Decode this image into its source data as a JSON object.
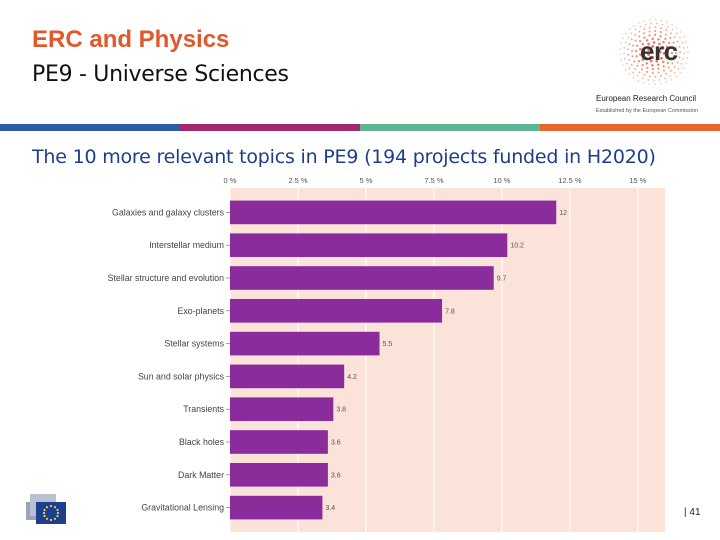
{
  "slide": {
    "title": "ERC and Physics",
    "subtitle": "PE9 - Universe Sciences",
    "page_number": "| 41"
  },
  "logo": {
    "word": "erc",
    "name": "European Research Council",
    "sub": "Established by the European Commission"
  },
  "colors": {
    "title": "#e2572b",
    "heading": "#1f3e8a",
    "bar": "#8a2c9b",
    "plot_bg": "#fbe3da",
    "stripe_blue": "#2e5da8",
    "stripe_purple": "#a12a6c",
    "stripe_teal": "#5fb58f",
    "stripe_orange": "#e8652b"
  },
  "chart_data": {
    "type": "bar",
    "orientation": "horizontal",
    "title": "The 10 more relevant topics in PE9 (194 projects funded in H2020)",
    "xlim": [
      0,
      16
    ],
    "xticks": [
      0,
      2.5,
      5,
      7.5,
      10,
      12.5,
      15
    ],
    "xtick_labels": [
      "0 %",
      "2.5 %",
      "5 %",
      "7.5 %",
      "10 %",
      "12.5 %",
      "15 %"
    ],
    "x_axis_position": "top",
    "grid": true,
    "categories": [
      "Galaxies and galaxy clusters",
      "Interstellar medium",
      "Stellar structure and evolution",
      "Exo-planets",
      "Stellar systems",
      "Sun and solar physics",
      "Transients",
      "Black holes",
      "Dark Matter",
      "Gravitational Lensing"
    ],
    "values": [
      12,
      10.2,
      9.7,
      7.8,
      5.5,
      4.2,
      3.8,
      3.6,
      3.6,
      3.4
    ],
    "value_labels": [
      "12",
      "10.2",
      "9.7",
      "7.8",
      "5.5",
      "4.2",
      "3.8",
      "3.6",
      "3.6",
      "3.4"
    ]
  }
}
